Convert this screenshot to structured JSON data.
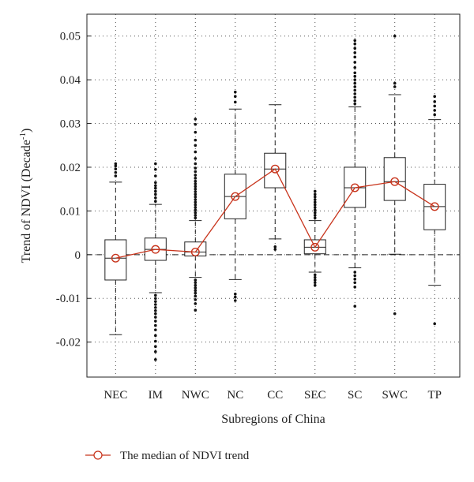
{
  "chart_data": {
    "type": "box",
    "title": "",
    "xlabel": "Subregions of China",
    "ylabel_main": "Trend of NDVI (Decade",
    "ylabel_sup": "-1",
    "ylabel_close": ")",
    "categories": [
      "NEC",
      "IM",
      "NWC",
      "NC",
      "CC",
      "SEC",
      "SC",
      "SWC",
      "TP"
    ],
    "ylim": [
      -0.028,
      0.055
    ],
    "yticks": [
      -0.02,
      -0.01,
      0,
      0.01,
      0.02,
      0.03,
      0.04,
      0.05
    ],
    "ytick_labels": [
      "-0.02",
      "-0.01",
      "0",
      "0.01",
      "0.02",
      "0.03",
      "0.04",
      "0.05"
    ],
    "grid": true,
    "reference_line": 0,
    "boxes": [
      {
        "category": "NEC",
        "whisker_low": -0.0183,
        "q1": -0.0058,
        "median": -0.0008,
        "q3": 0.0034,
        "whisker_high": 0.0166,
        "outliers": [
          0.018,
          0.0188,
          0.0196,
          0.0203,
          0.0208
        ]
      },
      {
        "category": "IM",
        "whisker_low": -0.0087,
        "q1": -0.0013,
        "median": 0.0012,
        "q3": 0.0038,
        "whisker_high": 0.0115,
        "outliers": [
          0.0122,
          0.013,
          0.0138,
          0.0145,
          0.0152,
          0.0158,
          0.0165,
          0.018,
          0.0195,
          0.0208,
          -0.0093,
          -0.01,
          -0.0107,
          -0.0114,
          -0.0121,
          -0.0128,
          -0.0135,
          -0.0143,
          -0.0152,
          -0.0162,
          -0.0172,
          -0.0185,
          -0.0198,
          -0.021,
          -0.0222,
          -0.024
        ]
      },
      {
        "category": "NWC",
        "whisker_low": -0.0052,
        "q1": -0.0003,
        "median": 0.0006,
        "q3": 0.0029,
        "whisker_high": 0.0078,
        "outliers": [
          0.0084,
          0.009,
          0.0096,
          0.0102,
          0.0108,
          0.0114,
          0.012,
          0.0126,
          0.0132,
          0.0138,
          0.0144,
          0.015,
          0.0156,
          0.0162,
          0.0168,
          0.0175,
          0.0182,
          0.019,
          0.0198,
          0.0208,
          0.022,
          0.0235,
          0.025,
          0.0262,
          0.028,
          0.0298,
          0.031,
          -0.0058,
          -0.0064,
          -0.007,
          -0.0076,
          -0.0082,
          -0.0088,
          -0.0095,
          -0.0103,
          -0.0112,
          -0.0127
        ]
      },
      {
        "category": "NC",
        "whisker_low": -0.0057,
        "q1": 0.0082,
        "median": 0.0133,
        "q3": 0.0184,
        "whisker_high": 0.0333,
        "outliers": [
          0.0349,
          0.0362,
          0.0372,
          -0.009,
          -0.0097,
          -0.0105
        ]
      },
      {
        "category": "CC",
        "whisker_low": 0.0036,
        "q1": 0.0153,
        "median": 0.0196,
        "q3": 0.0232,
        "whisker_high": 0.0343,
        "outliers": [
          0.0018,
          0.0012
        ]
      },
      {
        "category": "SEC",
        "whisker_low": -0.004,
        "q1": 0.0002,
        "median": 0.0017,
        "q3": 0.0034,
        "whisker_high": 0.0078,
        "outliers": [
          0.0084,
          0.009,
          0.0096,
          0.0102,
          0.0108,
          0.0114,
          0.012,
          0.0126,
          0.0132,
          0.0138,
          0.0145,
          -0.0046,
          -0.0052,
          -0.0058,
          -0.0064,
          -0.007
        ]
      },
      {
        "category": "SC",
        "whisker_low": -0.003,
        "q1": 0.0108,
        "median": 0.0153,
        "q3": 0.02,
        "whisker_high": 0.0338,
        "outliers": [
          0.0345,
          0.0352,
          0.036,
          0.0368,
          0.0376,
          0.0384,
          0.0392,
          0.04,
          0.0408,
          0.0416,
          0.0428,
          0.044,
          0.0452,
          0.0462,
          0.0472,
          0.0482,
          0.049,
          -0.004,
          -0.0048,
          -0.0056,
          -0.0064,
          -0.0074,
          -0.0118
        ]
      },
      {
        "category": "SWC",
        "whisker_low": 0.0001,
        "q1": 0.0124,
        "median": 0.0167,
        "q3": 0.0222,
        "whisker_high": 0.0366,
        "outliers": [
          0.0384,
          0.0392,
          0.05,
          -0.0135
        ]
      },
      {
        "category": "TP",
        "whisker_low": -0.007,
        "q1": 0.0057,
        "median": 0.011,
        "q3": 0.0161,
        "whisker_high": 0.0309,
        "outliers": [
          0.032,
          0.033,
          0.034,
          0.035,
          0.0362,
          -0.0158
        ]
      }
    ],
    "median_line": {
      "name": "The median of NDVI trend",
      "color": "#c8341c"
    },
    "legend_position": "bottom-left",
    "box_color": "#222222"
  }
}
